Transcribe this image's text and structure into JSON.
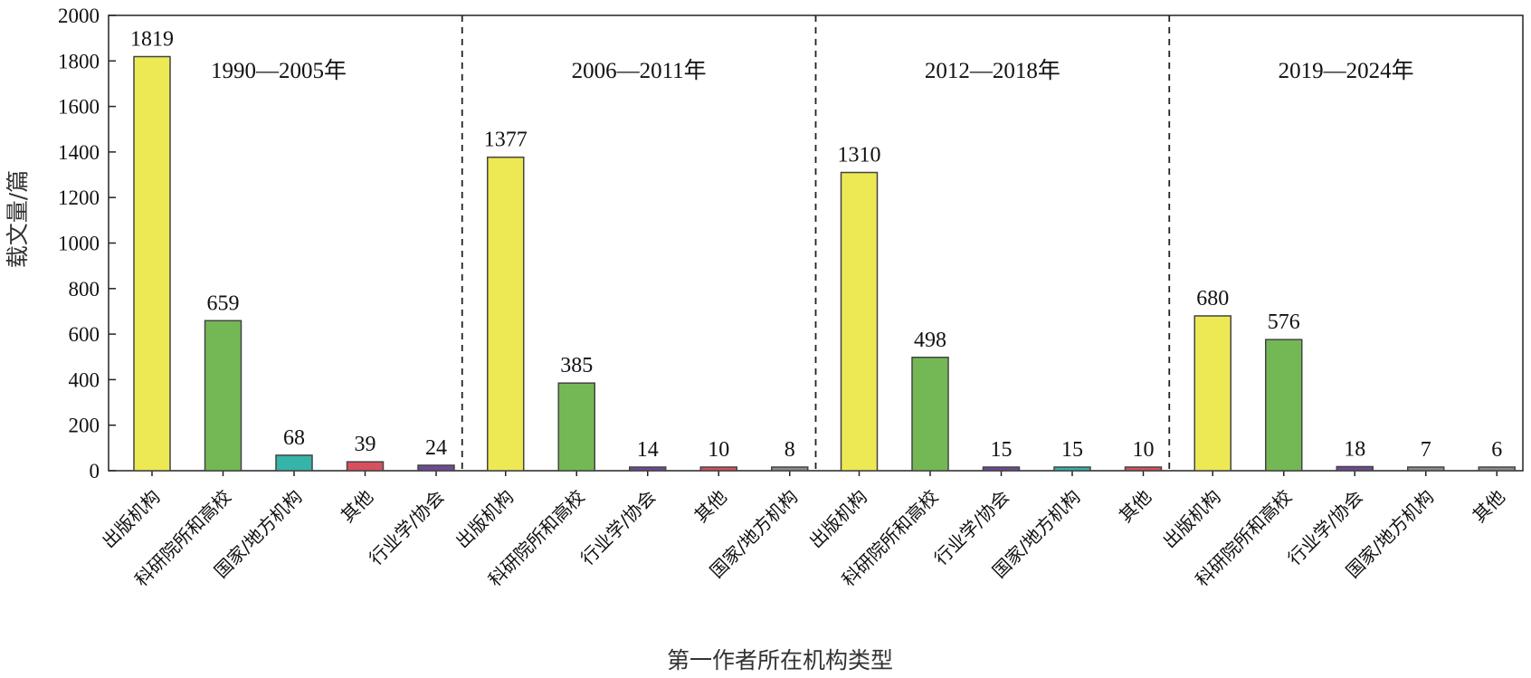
{
  "chart_data": {
    "type": "bar",
    "ylabel": "载文量/篇",
    "xlabel": "第一作者所在机构类型",
    "ylim": [
      0,
      2000
    ],
    "yticks": [
      0,
      200,
      400,
      600,
      800,
      1000,
      1200,
      1400,
      1600,
      1800,
      2000
    ],
    "colors": {
      "出版机构": "#ECE955",
      "科研院所和高校": "#74B856",
      "国家/地方机构": "#36B4A9",
      "其他": "#D8505E",
      "行业学/协会": "#6F4B92",
      "gray": "#8C8C8C"
    },
    "groups": [
      {
        "period": "1990—2005年",
        "categories": [
          "出版机构",
          "科研院所和高校",
          "国家/地方机构",
          "其他",
          "行业学/协会"
        ],
        "values": [
          1819,
          659,
          68,
          39,
          24
        ],
        "colors": [
          "#ECE955",
          "#74B856",
          "#36B4A9",
          "#D8505E",
          "#6F4B92"
        ]
      },
      {
        "period": "2006—2011年",
        "categories": [
          "出版机构",
          "科研院所和高校",
          "行业学/协会",
          "其他",
          "国家/地方机构"
        ],
        "values": [
          1377,
          385,
          14,
          10,
          8
        ],
        "colors": [
          "#ECE955",
          "#74B856",
          "#6F4B92",
          "#D8505E",
          "#8C8C8C"
        ]
      },
      {
        "period": "2012—2018年",
        "categories": [
          "出版机构",
          "科研院所和高校",
          "行业学/协会",
          "国家/地方机构",
          "其他"
        ],
        "values": [
          1310,
          498,
          15,
          15,
          10
        ],
        "colors": [
          "#ECE955",
          "#74B856",
          "#6F4B92",
          "#36B4A9",
          "#D8505E"
        ]
      },
      {
        "period": "2019—2024年",
        "categories": [
          "出版机构",
          "科研院所和高校",
          "行业学/协会",
          "国家/地方机构",
          "其他"
        ],
        "values": [
          680,
          576,
          18,
          7,
          6
        ],
        "colors": [
          "#ECE955",
          "#74B856",
          "#6F4B92",
          "#8C8C8C",
          "#8C8C8C"
        ]
      }
    ]
  }
}
